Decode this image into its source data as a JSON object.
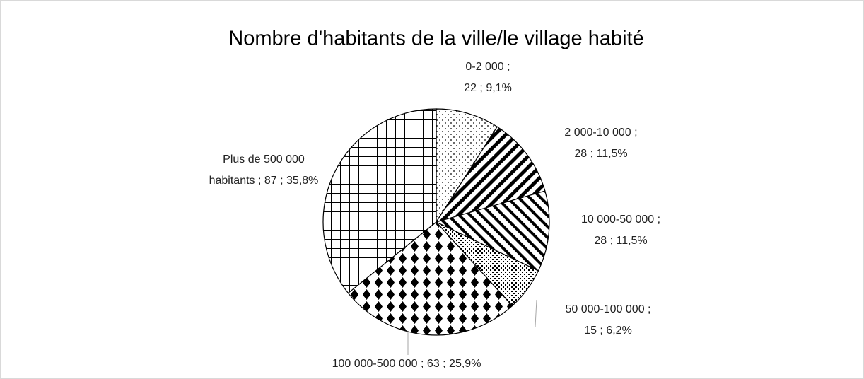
{
  "chart_data": {
    "type": "pie",
    "title": "Nombre d'habitants de la ville/le village habité",
    "values": [
      22,
      28,
      28,
      15,
      63,
      87
    ],
    "value_labels": [
      [
        "0-2 000 ;",
        "22 ; 9,1%"
      ],
      [
        "2 000-10 000 ;",
        "28 ; 11,5%"
      ],
      [
        "10 000-50 000 ;",
        "28 ; 11,5%"
      ],
      [
        "50 000-100 000 ;",
        "15 ; 6,2%"
      ],
      [
        "100 000-500 000 ; 63 ; 25,9%"
      ],
      [
        "Plus de 500 000",
        "habitants ; 87 ; 35,8%"
      ]
    ]
  }
}
